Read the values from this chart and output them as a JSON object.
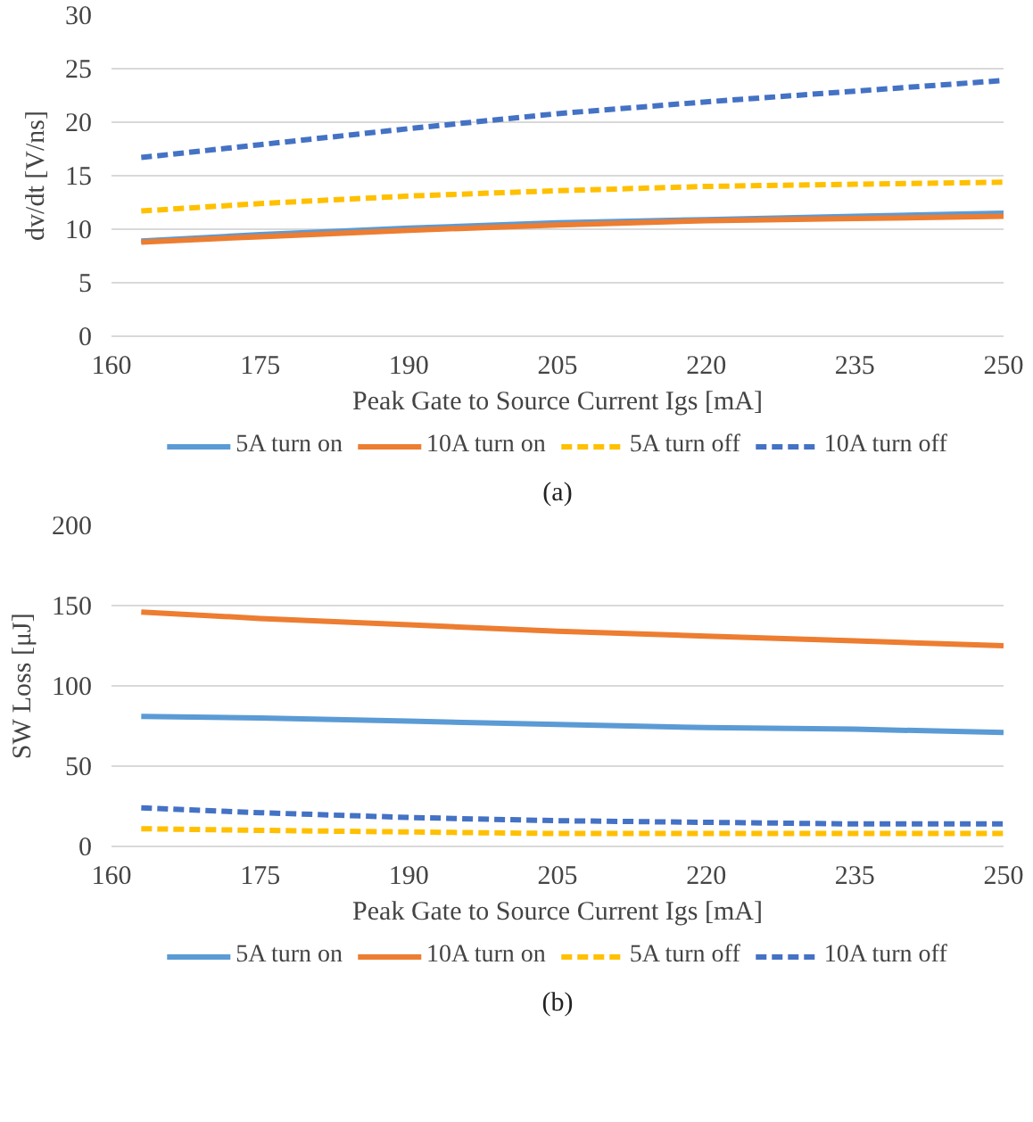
{
  "chart_data": [
    {
      "type": "line",
      "xlabel": "Peak Gate to Source Current Igs [mA]",
      "ylabel": "dv/dt [V/ns]",
      "x": [
        163,
        175,
        190,
        205,
        220,
        235,
        250
      ],
      "xlim": [
        160,
        250
      ],
      "xticks": [
        160,
        175,
        190,
        205,
        220,
        235,
        250
      ],
      "ylim": [
        0,
        30
      ],
      "yticks": [
        0,
        5,
        10,
        15,
        20,
        25,
        30
      ],
      "grid": "y",
      "legend": "bottom",
      "annotations": [
        "(a)"
      ],
      "series": [
        {
          "name": "5A turn on",
          "color": "#5b9bd5",
          "line_style": "solid",
          "values": [
            8.9,
            9.5,
            10.1,
            10.6,
            10.9,
            11.2,
            11.5
          ]
        },
        {
          "name": "10A turn on",
          "color": "#ed7d31",
          "line_style": "solid",
          "values": [
            8.8,
            9.3,
            9.9,
            10.4,
            10.8,
            11.0,
            11.2
          ]
        },
        {
          "name": "5A turn off",
          "color": "#ffc000",
          "line_style": "dashed",
          "values": [
            11.7,
            12.4,
            13.1,
            13.6,
            14.0,
            14.2,
            14.4
          ]
        },
        {
          "name": "10A turn off",
          "color": "#4472c4",
          "line_style": "dashed",
          "values": [
            16.7,
            17.9,
            19.4,
            20.8,
            21.9,
            22.9,
            23.9
          ]
        }
      ]
    },
    {
      "type": "line",
      "xlabel": "Peak Gate to Source Current Igs [mA]",
      "ylabel": "SW Loss [μJ]",
      "x": [
        163,
        175,
        190,
        205,
        220,
        235,
        250
      ],
      "xlim": [
        160,
        250
      ],
      "xticks": [
        160,
        175,
        190,
        205,
        220,
        235,
        250
      ],
      "ylim": [
        0,
        200
      ],
      "yticks": [
        0,
        50,
        100,
        150,
        200
      ],
      "grid": "y",
      "legend": "bottom",
      "annotations": [
        "(b)"
      ],
      "series": [
        {
          "name": "5A turn on",
          "color": "#5b9bd5",
          "line_style": "solid",
          "values": [
            81,
            80,
            78,
            76,
            74,
            73,
            71
          ]
        },
        {
          "name": "10A turn on",
          "color": "#ed7d31",
          "line_style": "solid",
          "values": [
            146,
            142,
            138,
            134,
            131,
            128,
            125
          ]
        },
        {
          "name": "5A turn off",
          "color": "#ffc000",
          "line_style": "dashed",
          "values": [
            11,
            10,
            9,
            8,
            8,
            8,
            8
          ]
        },
        {
          "name": "10A turn off",
          "color": "#4472c4",
          "line_style": "dashed",
          "values": [
            24,
            21,
            18,
            16,
            15,
            14,
            14
          ]
        }
      ]
    }
  ]
}
